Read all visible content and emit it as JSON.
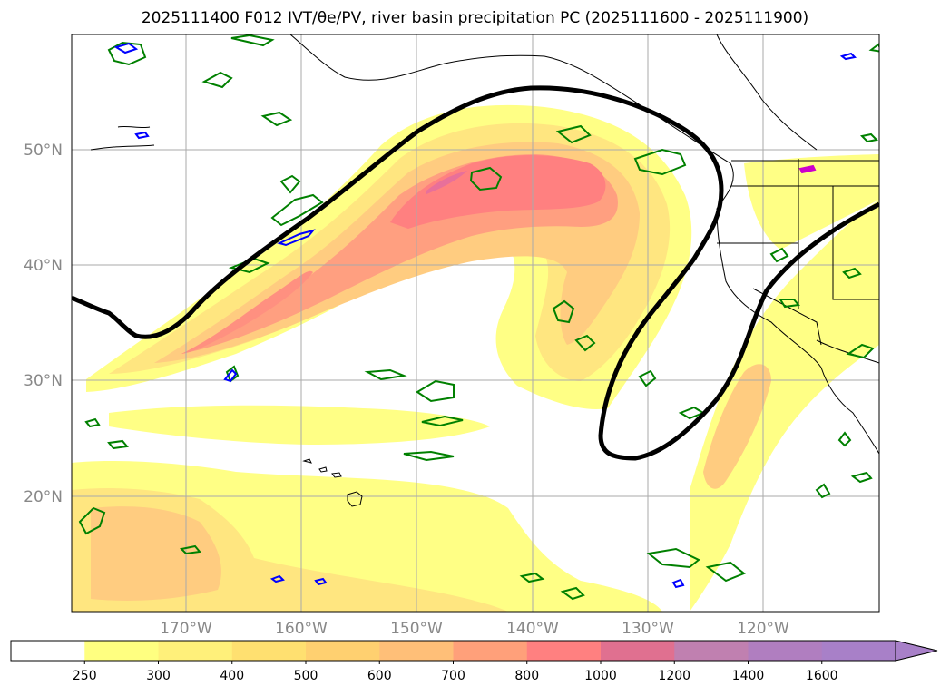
{
  "title": "2025111400 F012 IVT/θe/PV, river basin precipitation PC (2025111600 - 2025111900)",
  "map": {
    "lat_labels": [
      "50°N",
      "40°N",
      "30°N",
      "20°N"
    ],
    "lon_labels": [
      "170°W",
      "160°W",
      "150°W",
      "140°W",
      "130°W",
      "120°W"
    ],
    "gridlines": true,
    "coastlines": true,
    "state_borders": true
  },
  "colorbar": {
    "ticks": [
      "250",
      "300",
      "400",
      "500",
      "600",
      "700",
      "800",
      "1000",
      "1200",
      "1400",
      "1600"
    ],
    "colors": [
      "#ffffff",
      "#ffff80",
      "#fff07a",
      "#ffe070",
      "#ffd070",
      "#ffbf78",
      "#ffa07a",
      "#ff8080",
      "#e07090",
      "#c080b0",
      "#b07ec0",
      "#a880c8"
    ],
    "extend": "max"
  },
  "colors": {
    "pv_contour": "#008000",
    "theta_contour": "#0000ff",
    "outline": "#000000",
    "accent": "#cc00cc"
  }
}
